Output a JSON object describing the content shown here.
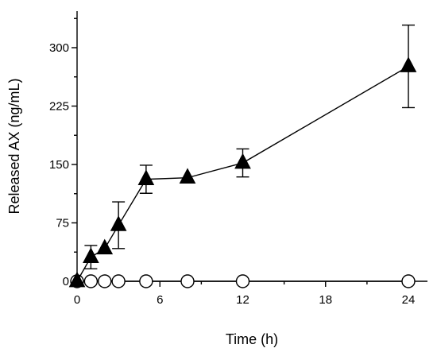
{
  "chart_data": {
    "type": "line",
    "xlabel": "Time (h)",
    "ylabel": "Released AX (ng/mL)",
    "xlim": [
      0,
      25
    ],
    "ylim": [
      0,
      330
    ],
    "xticks": [
      0,
      6,
      12,
      18,
      24
    ],
    "xtick_labels": [
      "0",
      "6",
      "12",
      "18",
      "24"
    ],
    "yticks": [
      0,
      75,
      150,
      225,
      300
    ],
    "ytick_labels": [
      "0",
      "75",
      "150",
      "225",
      "300"
    ],
    "grid": false,
    "legend": "none",
    "series": [
      {
        "marker": "filled-triangle",
        "color": "#000000",
        "x": [
          0,
          1,
          2,
          3,
          5,
          8,
          12,
          24
        ],
        "y": [
          0,
          31,
          42,
          72,
          131,
          133,
          152,
          276
        ],
        "err": [
          0,
          15,
          0,
          30,
          18,
          0,
          18,
          53
        ]
      },
      {
        "marker": "open-circle",
        "color": "#000000",
        "x": [
          0,
          1,
          2,
          3,
          5,
          8,
          12,
          24
        ],
        "y": [
          0,
          0,
          0,
          0,
          0,
          0,
          0,
          0
        ],
        "err": [
          0,
          0,
          0,
          0,
          0,
          0,
          0,
          0
        ]
      }
    ]
  }
}
